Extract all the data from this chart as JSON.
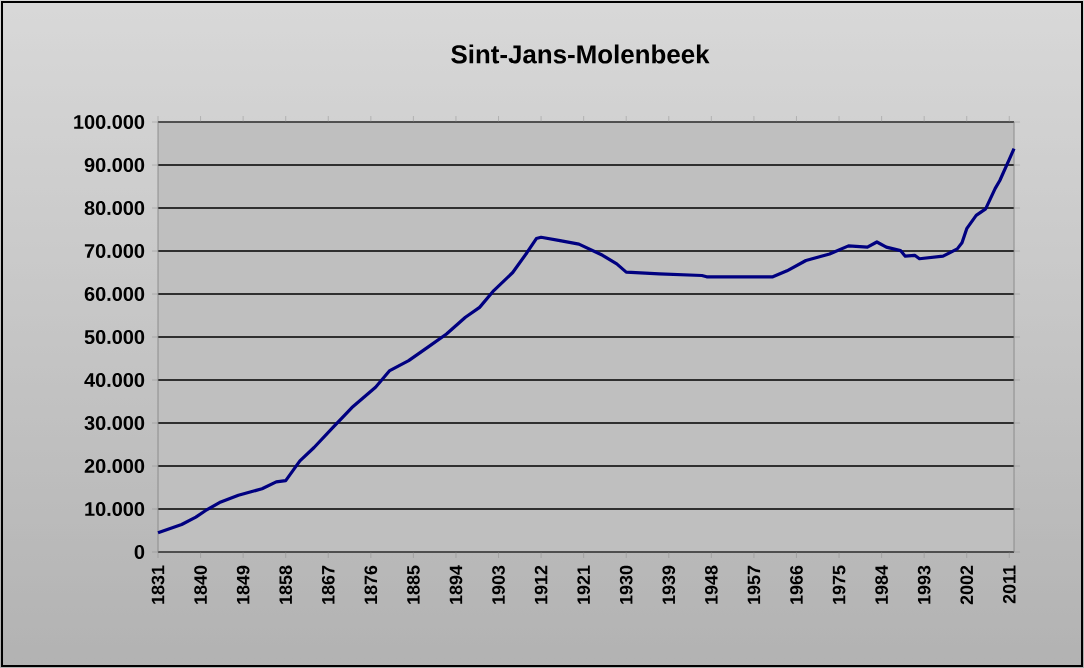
{
  "chart_data": {
    "type": "line",
    "title": "Sint-Jans-Molenbeek",
    "x": [
      1831,
      1836,
      1839,
      1841,
      1844,
      1848,
      1853,
      1856,
      1858,
      1861,
      1864,
      1868,
      1872,
      1877,
      1880,
      1884,
      1888,
      1892,
      1896,
      1899,
      1902,
      1906,
      1909,
      1911,
      1912,
      1916,
      1920,
      1925,
      1928,
      1930,
      1937,
      1946,
      1947,
      1961,
      1964,
      1968,
      1973,
      1977,
      1981,
      1983,
      1985,
      1988,
      1989,
      1991,
      1992,
      1997,
      2000,
      2001,
      2002,
      2004,
      2006,
      2008,
      2009,
      2011,
      2012
    ],
    "series": [
      {
        "color": "#000080",
        "values": [
          4500,
          6400,
          8100,
          9600,
          11500,
          13200,
          14700,
          16300,
          16600,
          21200,
          24300,
          29000,
          33600,
          38300,
          42200,
          44500,
          47600,
          50700,
          54600,
          56900,
          60800,
          65000,
          69600,
          72900,
          73200,
          72400,
          71600,
          69000,
          67000,
          65100,
          64700,
          64300,
          64000,
          64000,
          65400,
          67800,
          69300,
          71200,
          70900,
          72100,
          70900,
          70100,
          68800,
          69000,
          68200,
          68800,
          70500,
          71900,
          75200,
          78300,
          79800,
          84500,
          86400,
          91300,
          93800
        ]
      }
    ],
    "xlim": [
      1831,
      2012
    ],
    "xticks": [
      1831,
      1840,
      1849,
      1858,
      1867,
      1876,
      1885,
      1894,
      1903,
      1912,
      1921,
      1930,
      1939,
      1948,
      1957,
      1966,
      1975,
      1984,
      1993,
      2002,
      2011
    ],
    "ylim": [
      0,
      100000
    ],
    "yticks": [
      {
        "value": 0,
        "label": "0"
      },
      {
        "value": 10000,
        "label": "10.000"
      },
      {
        "value": 20000,
        "label": "20.000"
      },
      {
        "value": 30000,
        "label": "30.000"
      },
      {
        "value": 40000,
        "label": "40.000"
      },
      {
        "value": 50000,
        "label": "50.000"
      },
      {
        "value": 60000,
        "label": "60.000"
      },
      {
        "value": 70000,
        "label": "70.000"
      },
      {
        "value": 80000,
        "label": "80.000"
      },
      {
        "value": 90000,
        "label": "90.000"
      },
      {
        "value": 100000,
        "label": "100.000"
      }
    ],
    "grid": "y"
  }
}
